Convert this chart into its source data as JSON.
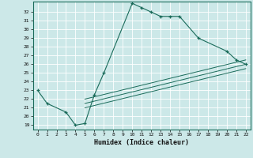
{
  "xlabel": "Humidex (Indice chaleur)",
  "bg_color": "#cce8e8",
  "grid_color": "#ffffff",
  "line_color": "#1a6b5a",
  "xlim": [
    -0.5,
    22.5
  ],
  "ylim": [
    18.5,
    33.2
  ],
  "xticks": [
    0,
    1,
    2,
    3,
    4,
    5,
    6,
    7,
    8,
    9,
    10,
    11,
    12,
    13,
    14,
    15,
    16,
    17,
    18,
    19,
    20,
    21,
    22
  ],
  "yticks": [
    19,
    20,
    21,
    22,
    23,
    24,
    25,
    26,
    27,
    28,
    29,
    30,
    31,
    32
  ],
  "series1_x": [
    0,
    1,
    3,
    4,
    5,
    6,
    7,
    10,
    11,
    12,
    13,
    14,
    15,
    17,
    20,
    21,
    22
  ],
  "series1_y": [
    23.0,
    21.5,
    20.5,
    19.0,
    19.2,
    22.5,
    25.0,
    33.0,
    32.5,
    32.0,
    31.5,
    31.5,
    31.5,
    29.0,
    27.5,
    26.5,
    26.0
  ],
  "line1_x": [
    5,
    22
  ],
  "line1_y": [
    22.0,
    26.5
  ],
  "line2_x": [
    5,
    22
  ],
  "line2_y": [
    21.5,
    26.0
  ],
  "line3_x": [
    5,
    22
  ],
  "line3_y": [
    21.0,
    25.5
  ]
}
